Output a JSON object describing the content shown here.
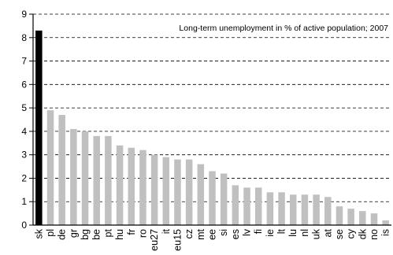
{
  "chart_data": {
    "type": "bar",
    "title": "Long-term unemployment in % of active population; 2007",
    "xlabel": "",
    "ylabel": "",
    "ylim": [
      0,
      9
    ],
    "yticks": [
      0,
      1,
      2,
      3,
      4,
      5,
      6,
      7,
      8,
      9
    ],
    "grid": "horizontal dashed",
    "categories": [
      "sk",
      "pl",
      "de",
      "gr",
      "bg",
      "be",
      "pt",
      "hu",
      "fr",
      "ro",
      "eu27",
      "it",
      "eu15",
      "cz",
      "mt",
      "ee",
      "si",
      "es",
      "lv",
      "fi",
      "ie",
      "lt",
      "lu",
      "nl",
      "uk",
      "at",
      "se",
      "cy",
      "dk",
      "no",
      "is"
    ],
    "values": [
      8.3,
      4.9,
      4.7,
      4.1,
      4.0,
      3.8,
      3.8,
      3.4,
      3.3,
      3.2,
      3.0,
      2.9,
      2.8,
      2.8,
      2.6,
      2.3,
      2.2,
      1.7,
      1.6,
      1.6,
      1.4,
      1.4,
      1.3,
      1.3,
      1.3,
      1.2,
      0.8,
      0.7,
      0.6,
      0.5,
      0.2
    ],
    "highlight_category": "sk",
    "colors": {
      "highlight": "#000000",
      "default": "#c0c0c0",
      "axis": "#000000",
      "grid": "#000000"
    }
  }
}
